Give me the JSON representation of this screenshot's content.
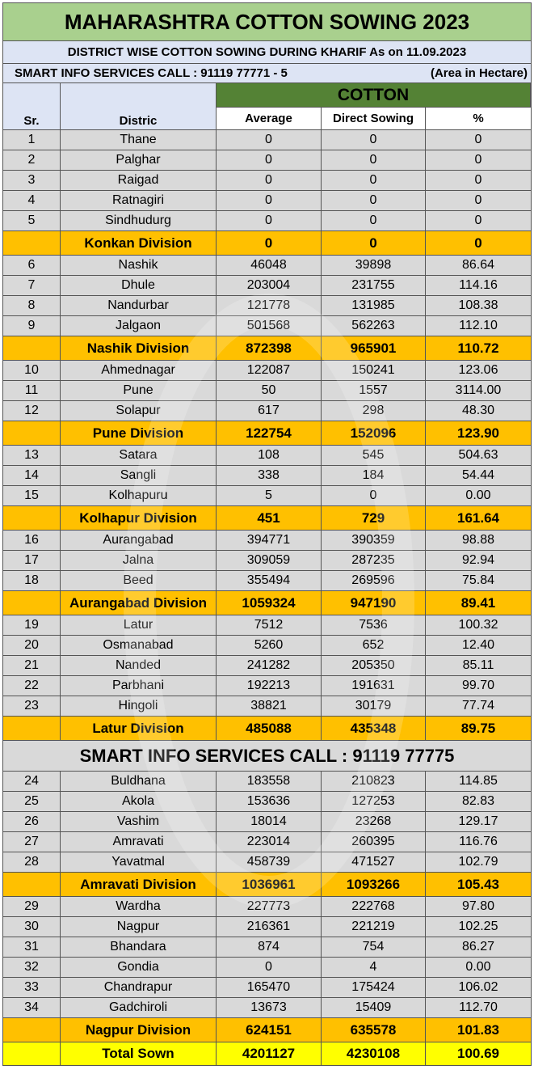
{
  "title": "MAHARASHTRA COTTON SOWING 2023",
  "subtitle": "DISTRICT WISE COTTON SOWING DURING KHARIF  As on 11.09.2023",
  "info_left": "SMART INFO SERVICES CALL : 91119 77771 - 5",
  "info_right": "(Area in Hectare)",
  "header": {
    "sr": "Sr.",
    "district": "Distric",
    "group": "COTTON",
    "average": "Average",
    "direct": "Direct Sowing",
    "percent": "%"
  },
  "smart_banner": "SMART INFO SERVICES CALL : 91119 77775",
  "rows": [
    {
      "t": "d",
      "sr": "1",
      "name": "Thane",
      "avg": "0",
      "direct": "0",
      "pct": "0"
    },
    {
      "t": "d",
      "sr": "2",
      "name": "Palghar",
      "avg": "0",
      "direct": "0",
      "pct": "0"
    },
    {
      "t": "d",
      "sr": "3",
      "name": "Raigad",
      "avg": "0",
      "direct": "0",
      "pct": "0"
    },
    {
      "t": "d",
      "sr": "4",
      "name": "Ratnagiri",
      "avg": "0",
      "direct": "0",
      "pct": "0"
    },
    {
      "t": "d",
      "sr": "5",
      "name": "Sindhudurg",
      "avg": "0",
      "direct": "0",
      "pct": "0"
    },
    {
      "t": "v",
      "sr": "",
      "name": "Konkan Division",
      "avg": "0",
      "direct": "0",
      "pct": "0"
    },
    {
      "t": "d",
      "sr": "6",
      "name": "Nashik",
      "avg": "46048",
      "direct": "39898",
      "pct": "86.64"
    },
    {
      "t": "d",
      "sr": "7",
      "name": "Dhule",
      "avg": "203004",
      "direct": "231755",
      "pct": "114.16"
    },
    {
      "t": "d",
      "sr": "8",
      "name": "Nandurbar",
      "avg": "121778",
      "direct": "131985",
      "pct": "108.38"
    },
    {
      "t": "d",
      "sr": "9",
      "name": "Jalgaon",
      "avg": "501568",
      "direct": "562263",
      "pct": "112.10"
    },
    {
      "t": "v",
      "sr": "",
      "name": "Nashik Division",
      "avg": "872398",
      "direct": "965901",
      "pct": "110.72"
    },
    {
      "t": "d",
      "sr": "10",
      "name": "Ahmednagar",
      "avg": "122087",
      "direct": "150241",
      "pct": "123.06"
    },
    {
      "t": "d",
      "sr": "11",
      "name": "Pune",
      "avg": "50",
      "direct": "1557",
      "pct": "3114.00"
    },
    {
      "t": "d",
      "sr": "12",
      "name": "Solapur",
      "avg": "617",
      "direct": "298",
      "pct": "48.30"
    },
    {
      "t": "v",
      "sr": "",
      "name": "Pune Division",
      "avg": "122754",
      "direct": "152096",
      "pct": "123.90"
    },
    {
      "t": "d",
      "sr": "13",
      "name": "Satara",
      "avg": "108",
      "direct": "545",
      "pct": "504.63"
    },
    {
      "t": "d",
      "sr": "14",
      "name": "Sangli",
      "avg": "338",
      "direct": "184",
      "pct": "54.44"
    },
    {
      "t": "d",
      "sr": "15",
      "name": "Kolhapuru",
      "avg": "5",
      "direct": "0",
      "pct": "0.00"
    },
    {
      "t": "v",
      "sr": "",
      "name": "Kolhapur Division",
      "avg": "451",
      "direct": "729",
      "pct": "161.64"
    },
    {
      "t": "d",
      "sr": "16",
      "name": "Aurangabad",
      "avg": "394771",
      "direct": "390359",
      "pct": "98.88"
    },
    {
      "t": "d",
      "sr": "17",
      "name": "Jalna",
      "avg": "309059",
      "direct": "287235",
      "pct": "92.94"
    },
    {
      "t": "d",
      "sr": "18",
      "name": "Beed",
      "avg": "355494",
      "direct": "269596",
      "pct": "75.84"
    },
    {
      "t": "v",
      "sr": "",
      "name": "Aurangabad Division",
      "avg": "1059324",
      "direct": "947190",
      "pct": "89.41"
    },
    {
      "t": "d",
      "sr": "19",
      "name": "Latur",
      "avg": "7512",
      "direct": "7536",
      "pct": "100.32"
    },
    {
      "t": "d",
      "sr": "20",
      "name": "Osmanabad",
      "avg": "5260",
      "direct": "652",
      "pct": "12.40"
    },
    {
      "t": "d",
      "sr": "21",
      "name": "Nanded",
      "avg": "241282",
      "direct": "205350",
      "pct": "85.11"
    },
    {
      "t": "d",
      "sr": "22",
      "name": "Parbhani",
      "avg": "192213",
      "direct": "191631",
      "pct": "99.70"
    },
    {
      "t": "d",
      "sr": "23",
      "name": "Hingoli",
      "avg": "38821",
      "direct": "30179",
      "pct": "77.74"
    },
    {
      "t": "v",
      "sr": "",
      "name": "Latur Division",
      "avg": "485088",
      "direct": "435348",
      "pct": "89.75"
    },
    {
      "t": "s"
    },
    {
      "t": "d",
      "sr": "24",
      "name": "Buldhana",
      "avg": "183558",
      "direct": "210823",
      "pct": "114.85"
    },
    {
      "t": "d",
      "sr": "25",
      "name": "Akola",
      "avg": "153636",
      "direct": "127253",
      "pct": "82.83"
    },
    {
      "t": "d",
      "sr": "26",
      "name": "Vashim",
      "avg": "18014",
      "direct": "23268",
      "pct": "129.17"
    },
    {
      "t": "d",
      "sr": "27",
      "name": "Amravati",
      "avg": "223014",
      "direct": "260395",
      "pct": "116.76"
    },
    {
      "t": "d",
      "sr": "28",
      "name": "Yavatmal",
      "avg": "458739",
      "direct": "471527",
      "pct": "102.79"
    },
    {
      "t": "v",
      "sr": "",
      "name": "Amravati Division",
      "avg": "1036961",
      "direct": "1093266",
      "pct": "105.43"
    },
    {
      "t": "d",
      "sr": "29",
      "name": "Wardha",
      "avg": "227773",
      "direct": "222768",
      "pct": "97.80"
    },
    {
      "t": "d",
      "sr": "30",
      "name": "Nagpur",
      "avg": "216361",
      "direct": "221219",
      "pct": "102.25"
    },
    {
      "t": "d",
      "sr": "31",
      "name": "Bhandara",
      "avg": "874",
      "direct": "754",
      "pct": "86.27"
    },
    {
      "t": "d",
      "sr": "32",
      "name": "Gondia",
      "avg": "0",
      "direct": "4",
      "pct": "0.00"
    },
    {
      "t": "d",
      "sr": "33",
      "name": "Chandrapur",
      "avg": "165470",
      "direct": "175424",
      "pct": "106.02"
    },
    {
      "t": "d",
      "sr": "34",
      "name": "Gadchiroli",
      "avg": "13673",
      "direct": "15409",
      "pct": "112.70"
    },
    {
      "t": "v",
      "sr": "",
      "name": "Nagpur Division",
      "avg": "624151",
      "direct": "635578",
      "pct": "101.83"
    },
    {
      "t": "t",
      "sr": "",
      "name": "Total Sown",
      "avg": "4201127",
      "direct": "4230108",
      "pct": "100.69"
    }
  ]
}
